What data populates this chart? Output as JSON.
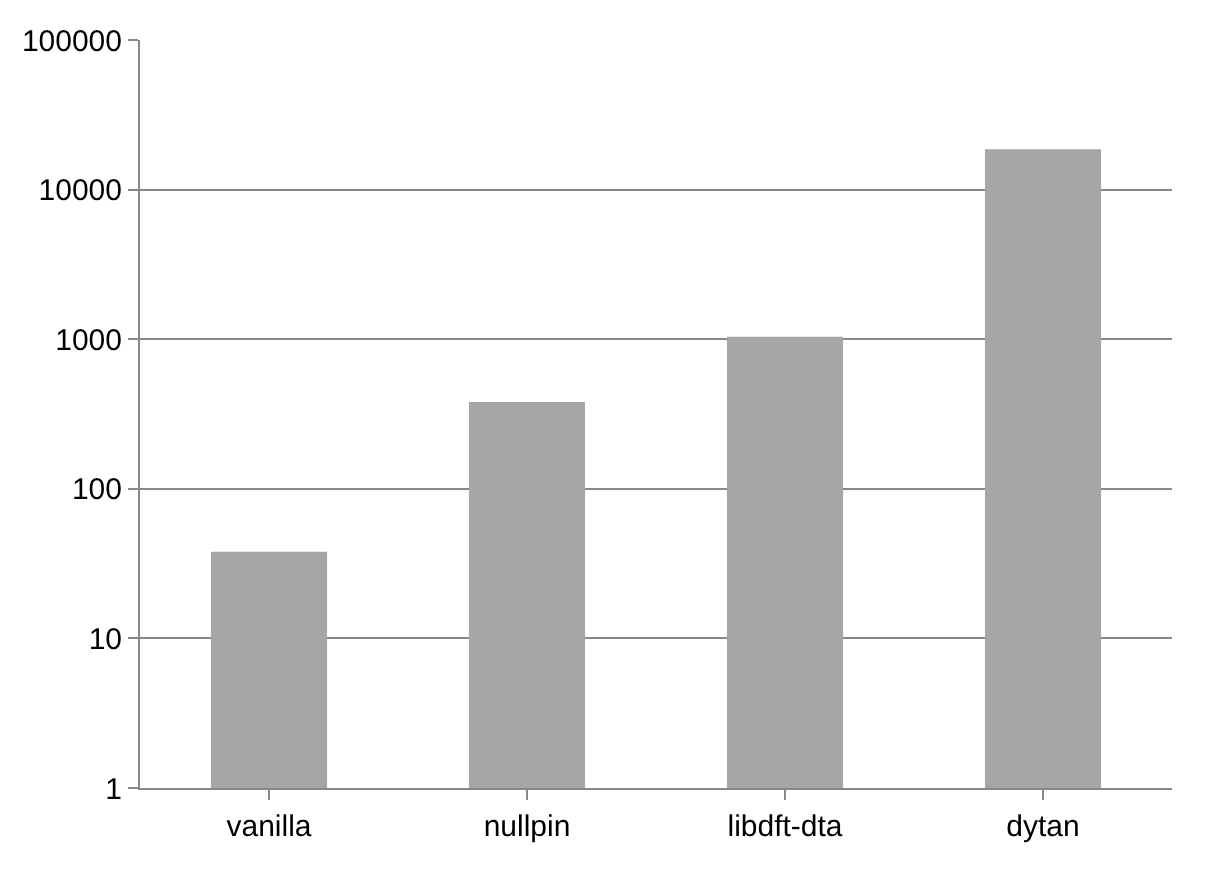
{
  "chart_data": {
    "type": "bar",
    "categories": [
      "vanilla",
      "nullpin",
      "libdft-dta",
      "dytan"
    ],
    "values": [
      38,
      380,
      1040,
      18600
    ],
    "color": "#a6a6a6",
    "log": true,
    "ylim": [
      1,
      100000
    ],
    "yticks": [
      1,
      10,
      100,
      1000,
      10000,
      100000
    ],
    "grid": "y"
  }
}
